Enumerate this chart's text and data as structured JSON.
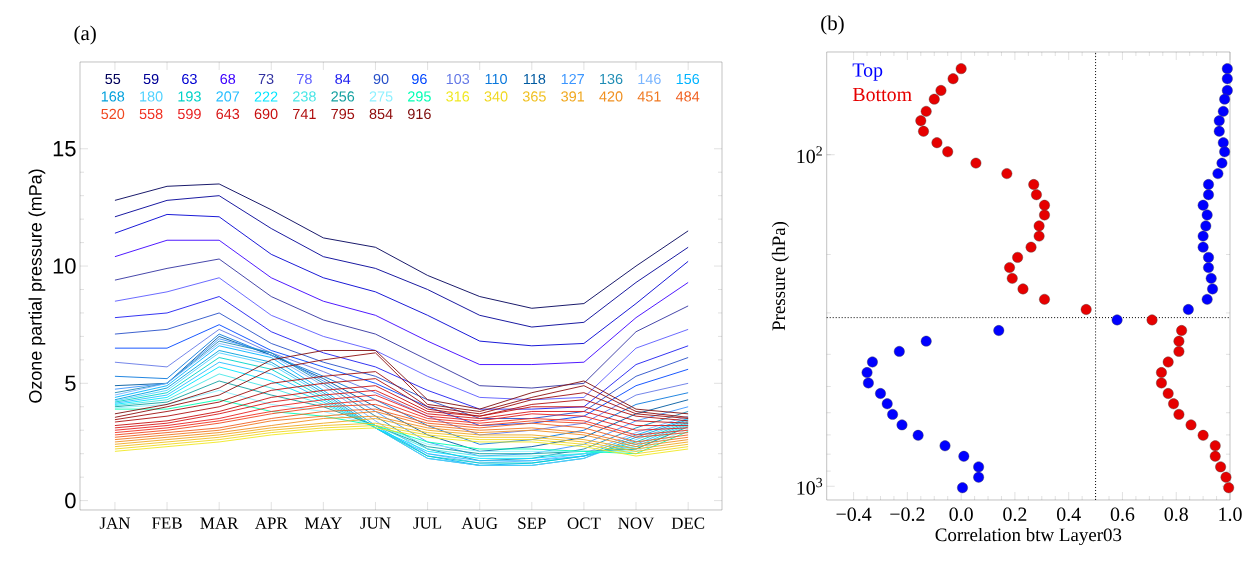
{
  "chart_data": [
    {
      "type": "line",
      "title": "(a)",
      "ylabel": "Ozone partial pressure (mPa)",
      "categories": [
        "JAN",
        "FEB",
        "MAR",
        "APR",
        "MAY",
        "JUN",
        "JUL",
        "AUG",
        "SEP",
        "OCT",
        "NOV",
        "DEC"
      ],
      "ylim": [
        -0.4,
        18.7
      ],
      "yticks": [
        0,
        5,
        10,
        15
      ],
      "legend": "top",
      "series": [
        {
          "name": "55",
          "color": "#00005a",
          "values": [
            12.8,
            13.4,
            13.5,
            12.4,
            11.2,
            10.8,
            9.6,
            8.7,
            8.2,
            8.4,
            10.0,
            11.5
          ]
        },
        {
          "name": "59",
          "color": "#000096",
          "values": [
            12.1,
            12.8,
            13.0,
            11.6,
            10.4,
            9.9,
            9.0,
            7.9,
            7.4,
            7.6,
            9.3,
            10.8
          ]
        },
        {
          "name": "63",
          "color": "#0000d2",
          "values": [
            11.4,
            12.2,
            12.1,
            10.5,
            9.5,
            8.9,
            7.9,
            6.8,
            6.6,
            6.7,
            8.4,
            10.2
          ]
        },
        {
          "name": "68",
          "color": "#3c00ff",
          "values": [
            10.4,
            11.1,
            11.1,
            9.5,
            8.5,
            7.9,
            6.8,
            5.8,
            5.8,
            5.9,
            7.8,
            9.3
          ]
        },
        {
          "name": "73",
          "color": "#3232a0",
          "values": [
            9.4,
            9.9,
            10.3,
            8.7,
            7.7,
            7.1,
            6.0,
            4.9,
            4.8,
            5.0,
            7.2,
            8.3
          ]
        },
        {
          "name": "78",
          "color": "#5a5aff",
          "values": [
            8.5,
            8.9,
            9.5,
            7.9,
            7.0,
            6.4,
            5.3,
            4.4,
            4.3,
            4.4,
            6.5,
            7.3
          ]
        },
        {
          "name": "84",
          "color": "#1e1ef0",
          "values": [
            7.8,
            8.0,
            8.7,
            7.2,
            6.3,
            5.7,
            4.7,
            3.9,
            3.9,
            4.0,
            5.8,
            6.6
          ]
        },
        {
          "name": "90",
          "color": "#2850c8",
          "values": [
            7.1,
            7.3,
            8.0,
            6.7,
            5.9,
            5.3,
            4.3,
            3.5,
            3.5,
            3.8,
            5.3,
            6.1
          ]
        },
        {
          "name": "96",
          "color": "#0046ff",
          "values": [
            6.5,
            6.5,
            7.5,
            6.4,
            5.7,
            5.0,
            4.0,
            3.2,
            3.3,
            3.6,
            4.9,
            5.6
          ]
        },
        {
          "name": "103",
          "color": "#6478e6",
          "values": [
            5.9,
            5.7,
            7.3,
            6.3,
            5.5,
            4.6,
            3.6,
            2.8,
            3.0,
            3.3,
            4.5,
            5.0
          ]
        },
        {
          "name": "110",
          "color": "#0a78dc",
          "values": [
            5.3,
            5.2,
            7.1,
            6.2,
            5.3,
            4.3,
            3.2,
            2.4,
            2.6,
            3.0,
            4.1,
            4.6
          ]
        },
        {
          "name": "118",
          "color": "#005aa0",
          "values": [
            4.9,
            5.0,
            7.0,
            6.2,
            5.2,
            4.0,
            2.8,
            2.1,
            2.3,
            2.7,
            3.7,
            4.3
          ]
        },
        {
          "name": "127",
          "color": "#3c96ff",
          "values": [
            4.75,
            5.0,
            6.9,
            6.3,
            5.1,
            3.8,
            2.5,
            1.9,
            2.0,
            2.4,
            3.4,
            4.0
          ]
        },
        {
          "name": "136",
          "color": "#1e8cb4",
          "values": [
            4.6,
            5.0,
            6.8,
            6.3,
            5.0,
            3.6,
            2.2,
            1.7,
            1.8,
            2.2,
            3.1,
            3.8
          ]
        },
        {
          "name": "146",
          "color": "#78b4ff",
          "values": [
            4.5,
            5.0,
            6.7,
            6.2,
            4.9,
            3.4,
            2.0,
            1.6,
            1.7,
            2.0,
            2.9,
            3.6
          ]
        },
        {
          "name": "156",
          "color": "#00b4ff",
          "values": [
            4.4,
            4.9,
            6.6,
            6.1,
            4.7,
            3.2,
            1.9,
            1.5,
            1.6,
            1.9,
            2.8,
            3.5
          ]
        },
        {
          "name": "168",
          "color": "#00a0dc",
          "values": [
            4.3,
            4.8,
            6.4,
            5.9,
            4.6,
            3.1,
            1.8,
            1.5,
            1.5,
            1.8,
            2.7,
            3.45
          ]
        },
        {
          "name": "180",
          "color": "#50d2ff",
          "values": [
            4.25,
            4.7,
            6.3,
            5.8,
            4.5,
            3.1,
            1.8,
            1.5,
            1.5,
            1.8,
            2.6,
            3.4
          ]
        },
        {
          "name": "193",
          "color": "#00d2c8",
          "values": [
            4.2,
            4.6,
            6.1,
            5.6,
            4.4,
            3.1,
            1.9,
            1.6,
            1.6,
            1.9,
            2.5,
            3.35
          ]
        },
        {
          "name": "207",
          "color": "#28beff",
          "values": [
            4.15,
            4.5,
            5.9,
            5.4,
            4.3,
            3.1,
            2.0,
            1.7,
            1.7,
            1.9,
            2.4,
            3.3
          ]
        },
        {
          "name": "222",
          "color": "#00e6ff",
          "values": [
            4.1,
            4.4,
            5.7,
            5.1,
            4.2,
            3.1,
            2.1,
            1.8,
            1.8,
            2.0,
            2.3,
            3.25
          ]
        },
        {
          "name": "238",
          "color": "#46e6e6",
          "values": [
            4.05,
            4.3,
            5.4,
            4.8,
            4.1,
            3.2,
            2.2,
            1.9,
            1.9,
            2.0,
            2.2,
            3.2
          ]
        },
        {
          "name": "256",
          "color": "#14a0a0",
          "values": [
            4.0,
            4.2,
            5.1,
            4.5,
            4.0,
            3.2,
            2.3,
            2.0,
            2.0,
            2.1,
            2.2,
            3.15
          ]
        },
        {
          "name": "275",
          "color": "#8cf0ff",
          "values": [
            3.95,
            4.1,
            4.7,
            4.1,
            3.8,
            3.2,
            2.4,
            2.1,
            2.1,
            2.1,
            2.1,
            3.05
          ]
        },
        {
          "name": "295",
          "color": "#00ffb4",
          "values": [
            3.9,
            3.9,
            4.3,
            3.8,
            3.6,
            3.2,
            2.5,
            2.2,
            2.2,
            2.1,
            2.0,
            2.95
          ]
        },
        {
          "name": "316",
          "color": "#f0e820",
          "values": [
            2.1,
            2.3,
            2.5,
            2.8,
            3.0,
            3.1,
            2.7,
            2.5,
            2.5,
            2.3,
            1.9,
            2.2
          ]
        },
        {
          "name": "340",
          "color": "#f0d820",
          "values": [
            2.2,
            2.4,
            2.6,
            2.9,
            3.1,
            3.2,
            2.8,
            2.6,
            2.6,
            2.4,
            2.0,
            2.3
          ]
        },
        {
          "name": "365",
          "color": "#f0c020",
          "values": [
            2.3,
            2.5,
            2.7,
            3.0,
            3.2,
            3.3,
            2.9,
            2.7,
            2.7,
            2.5,
            2.1,
            2.4
          ]
        },
        {
          "name": "391",
          "color": "#f0a820",
          "values": [
            2.4,
            2.6,
            2.8,
            3.1,
            3.3,
            3.5,
            3.0,
            2.8,
            2.8,
            2.6,
            2.2,
            2.5
          ]
        },
        {
          "name": "420",
          "color": "#f09020",
          "values": [
            2.5,
            2.7,
            2.9,
            3.2,
            3.5,
            3.6,
            3.1,
            2.9,
            3.0,
            2.8,
            2.3,
            2.6
          ]
        },
        {
          "name": "451",
          "color": "#f07820",
          "values": [
            2.6,
            2.8,
            3.0,
            3.4,
            3.6,
            3.8,
            3.2,
            3.0,
            3.1,
            2.9,
            2.4,
            2.7
          ]
        },
        {
          "name": "484",
          "color": "#f06020",
          "values": [
            2.7,
            2.9,
            3.1,
            3.5,
            3.8,
            3.9,
            3.3,
            3.1,
            3.3,
            3.1,
            2.5,
            2.8
          ]
        },
        {
          "name": "520",
          "color": "#f04820",
          "values": [
            2.8,
            3.0,
            3.3,
            3.7,
            4.0,
            4.1,
            3.4,
            3.2,
            3.4,
            3.3,
            2.7,
            2.9
          ]
        },
        {
          "name": "558",
          "color": "#f03020",
          "values": [
            2.9,
            3.1,
            3.4,
            3.8,
            4.1,
            4.3,
            3.5,
            3.3,
            3.5,
            3.4,
            2.8,
            3.0
          ]
        },
        {
          "name": "599",
          "color": "#e82020",
          "values": [
            3.0,
            3.2,
            3.5,
            4.0,
            4.3,
            4.5,
            3.6,
            3.4,
            3.7,
            3.6,
            3.0,
            3.1
          ]
        },
        {
          "name": "643",
          "color": "#d81818",
          "values": [
            3.1,
            3.3,
            3.7,
            4.2,
            4.5,
            4.7,
            3.7,
            3.5,
            3.8,
            3.8,
            3.2,
            3.2
          ]
        },
        {
          "name": "690",
          "color": "#c81010",
          "values": [
            3.2,
            3.4,
            3.8,
            4.4,
            4.7,
            4.9,
            3.8,
            3.6,
            4.0,
            4.0,
            3.4,
            3.3
          ]
        },
        {
          "name": "741",
          "color": "#b01010",
          "values": [
            3.35,
            3.6,
            4.0,
            4.7,
            5.0,
            5.2,
            3.9,
            3.6,
            4.1,
            4.3,
            3.6,
            3.4
          ]
        },
        {
          "name": "795",
          "color": "#a01010",
          "values": [
            3.45,
            3.8,
            4.2,
            5.0,
            5.3,
            5.5,
            4.0,
            3.7,
            4.3,
            4.6,
            3.7,
            3.5
          ]
        },
        {
          "name": "854",
          "color": "#901010",
          "values": [
            3.55,
            4.0,
            4.5,
            5.6,
            6.0,
            6.3,
            4.1,
            3.8,
            4.4,
            4.9,
            3.8,
            3.55
          ]
        },
        {
          "name": "916",
          "color": "#801010",
          "values": [
            3.7,
            4.1,
            4.8,
            6.0,
            6.4,
            6.4,
            4.3,
            3.9,
            4.6,
            5.1,
            3.9,
            3.7
          ]
        }
      ]
    },
    {
      "type": "scatter",
      "title": "(b)",
      "xlabel": "Correlation btw Layer03",
      "ylabel": "Pressure (hPa)",
      "log": "y",
      "xlim": [
        -0.5,
        1.0
      ],
      "ylim": [
        1100,
        49
      ],
      "xticks": [
        {
          "value": -0.4,
          "label": "−0.4"
        },
        {
          "value": -0.2,
          "label": "−0.2"
        },
        {
          "value": 0,
          "label": "0.0"
        },
        0.2,
        0.4,
        0.6,
        0.8,
        {
          "value": 1.0,
          "label": "1.0"
        }
      ],
      "yticks": [
        {
          "value": 100,
          "label": "10$^{2}$"
        },
        {
          "value": 1000,
          "label": "10$^{3}$"
        }
      ],
      "legend": "top left",
      "ref_lines": [
        {
          "axis": "x",
          "value": 0.5,
          "line_style": "dotted"
        },
        {
          "axis": "y",
          "value": 310,
          "line_style": "dotted"
        }
      ],
      "series": [
        {
          "name": "Top",
          "color": "#0000ff",
          "x": [
            0.99,
            0.99,
            0.99,
            0.98,
            0.975,
            0.96,
            0.96,
            0.975,
            0.98,
            0.97,
            0.955,
            0.92,
            0.92,
            0.9,
            0.915,
            0.91,
            0.9,
            0.9,
            0.92,
            0.92,
            0.93,
            0.935,
            0.915,
            0.845,
            0.58,
            0.14,
            -0.13,
            -0.23,
            -0.33,
            -0.35,
            -0.345,
            -0.3,
            -0.275,
            -0.255,
            -0.22,
            -0.16,
            -0.06,
            0.01,
            0.065,
            0.065,
            0.005
          ],
          "values": [
            55,
            59,
            64,
            68,
            74,
            79,
            85,
            92,
            98,
            106,
            114,
            123,
            132,
            142,
            152,
            164,
            176,
            190,
            204,
            219,
            236,
            254,
            273,
            293,
            315,
            339,
            365,
            392,
            422,
            454,
            488,
            525,
            564,
            607,
            653,
            702,
            755,
            812,
            874,
            939,
            1010
          ]
        },
        {
          "name": "Bottom",
          "color": "#e60000",
          "x": [
            0.0,
            -0.03,
            -0.075,
            -0.1,
            -0.13,
            -0.15,
            -0.14,
            -0.09,
            -0.05,
            0.055,
            0.17,
            0.27,
            0.28,
            0.31,
            0.31,
            0.29,
            0.29,
            0.26,
            0.21,
            0.18,
            0.19,
            0.23,
            0.31,
            0.465,
            0.71,
            0.82,
            0.81,
            0.81,
            0.77,
            0.745,
            0.745,
            0.77,
            0.79,
            0.81,
            0.855,
            0.9,
            0.945,
            0.945,
            0.965,
            0.985,
            0.995
          ],
          "values": [
            55,
            59,
            64,
            68,
            74,
            79,
            85,
            92,
            98,
            106,
            114,
            123,
            132,
            142,
            152,
            164,
            176,
            190,
            204,
            219,
            236,
            254,
            273,
            293,
            315,
            339,
            365,
            392,
            422,
            454,
            488,
            525,
            564,
            607,
            653,
            702,
            755,
            812,
            874,
            939,
            1010
          ]
        }
      ]
    }
  ]
}
